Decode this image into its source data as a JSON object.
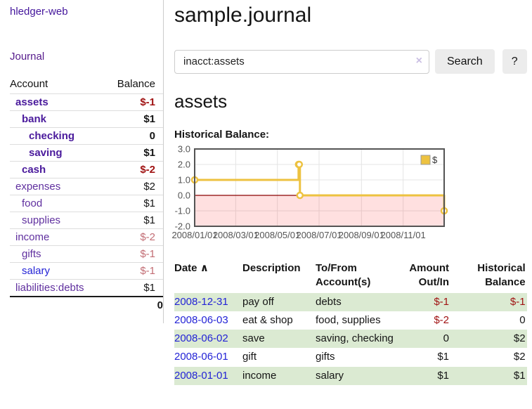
{
  "app": {
    "brand": "hledger-web",
    "nav_journal": "Journal"
  },
  "sidebar": {
    "header": {
      "account": "Account",
      "balance": "Balance"
    },
    "accounts": [
      {
        "name": "assets",
        "balance": "$-1"
      },
      {
        "name": "bank",
        "balance": "$1"
      },
      {
        "name": "checking",
        "balance": "0"
      },
      {
        "name": "saving",
        "balance": "$1"
      },
      {
        "name": "cash",
        "balance": "$-2"
      },
      {
        "name": "expenses",
        "balance": "$2"
      },
      {
        "name": "food",
        "balance": "$1"
      },
      {
        "name": "supplies",
        "balance": "$1"
      },
      {
        "name": "income",
        "balance": "$-2"
      },
      {
        "name": "gifts",
        "balance": "$-1"
      },
      {
        "name": "salary",
        "balance": "$-1"
      },
      {
        "name": "liabilities:debts",
        "balance": "$1"
      }
    ],
    "total": "0"
  },
  "header": {
    "title": "sample.journal"
  },
  "search": {
    "value": "inacct:assets",
    "clear_icon": "×",
    "button_label": "Search",
    "help_label": "?"
  },
  "account_page": {
    "title": "assets",
    "chart_label": "Historical Balance:"
  },
  "chart_data": {
    "type": "line",
    "step": true,
    "series": [
      {
        "name": "$",
        "color": "#edc240",
        "points": [
          {
            "date": "2008-01-01",
            "value": 1
          },
          {
            "date": "2008-06-01",
            "value": 2
          },
          {
            "date": "2008-06-02",
            "value": 2
          },
          {
            "date": "2008-06-03",
            "value": 0
          },
          {
            "date": "2008-12-31",
            "value": -1
          }
        ]
      }
    ],
    "xlim": [
      "2008-01-01",
      "2008-12-31"
    ],
    "ylim": [
      -2,
      3
    ],
    "x_ticks": [
      "2008/01/01",
      "2008/03/01",
      "2008/05/01",
      "2008/07/01",
      "2008/09/01",
      "2008/11/01"
    ],
    "y_ticks": [
      3.0,
      2.0,
      1.0,
      0.0,
      -1.0,
      -2.0
    ],
    "grid": true,
    "legend": {
      "label": "$",
      "position": "top-right"
    },
    "negative_region_fill": "rgba(255,0,0,0.12)",
    "zero_line_color": "#8b0000",
    "axis_color": "#545454"
  },
  "register": {
    "columns": {
      "date": "Date",
      "sort_indicator": "∧",
      "description": "Description",
      "accounts": "To/From Account(s)",
      "amount": "Amount Out/In",
      "balance": "Historical Balance"
    },
    "rows": [
      {
        "date": "2008-12-31",
        "description": "pay off",
        "accounts": "debts",
        "amount": "$-1",
        "balance": "$-1"
      },
      {
        "date": "2008-06-03",
        "description": "eat & shop",
        "accounts": "food, supplies",
        "amount": "$-2",
        "balance": "0"
      },
      {
        "date": "2008-06-02",
        "description": "save",
        "accounts": "saving, checking",
        "amount": "0",
        "balance": "$2"
      },
      {
        "date": "2008-06-01",
        "description": "gift",
        "accounts": "gifts",
        "amount": "$1",
        "balance": "$2"
      },
      {
        "date": "2008-01-01",
        "description": "income",
        "accounts": "salary",
        "amount": "$1",
        "balance": "$1"
      }
    ]
  }
}
